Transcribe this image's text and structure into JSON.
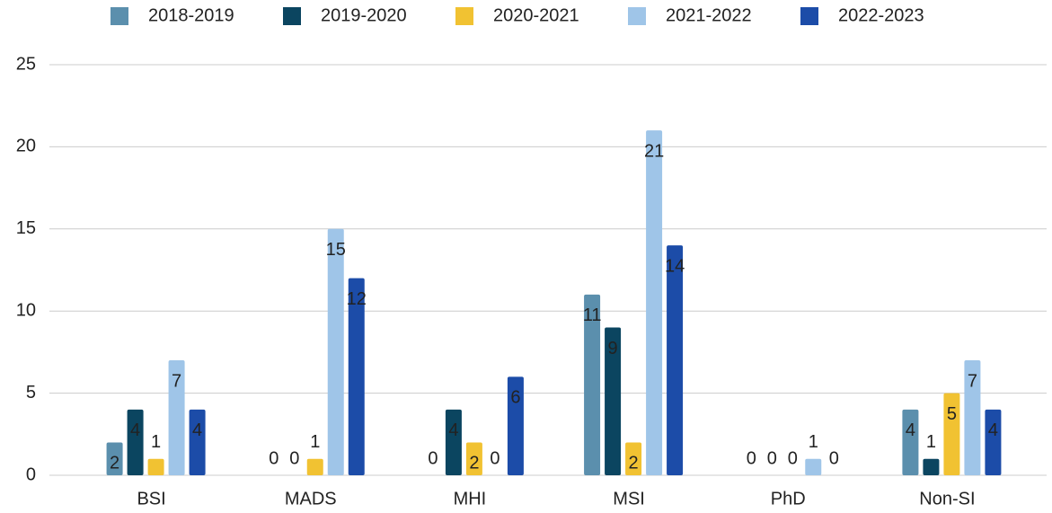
{
  "chart_data": {
    "type": "bar",
    "categories": [
      "BSI",
      "MADS",
      "MHI",
      "MSI",
      "PhD",
      "Non-SI"
    ],
    "series": [
      {
        "name": "2018-2019",
        "color": "#5b8fad",
        "values": [
          2,
          0,
          0,
          11,
          0,
          4
        ]
      },
      {
        "name": "2019-2020",
        "color": "#0b4560",
        "values": [
          4,
          0,
          4,
          9,
          0,
          1
        ]
      },
      {
        "name": "2020-2021",
        "color": "#f1c232",
        "values": [
          1,
          1,
          2,
          2,
          0,
          5
        ]
      },
      {
        "name": "2021-2022",
        "color": "#9fc5e8",
        "values": [
          7,
          15,
          0,
          21,
          1,
          7
        ]
      },
      {
        "name": "2022-2023",
        "color": "#1c4ca8",
        "values": [
          4,
          12,
          6,
          14,
          0,
          4
        ]
      }
    ],
    "ylim": [
      0,
      25
    ],
    "yticks": [
      0,
      5,
      10,
      15,
      20,
      25
    ],
    "grid": true,
    "legend": "top"
  }
}
